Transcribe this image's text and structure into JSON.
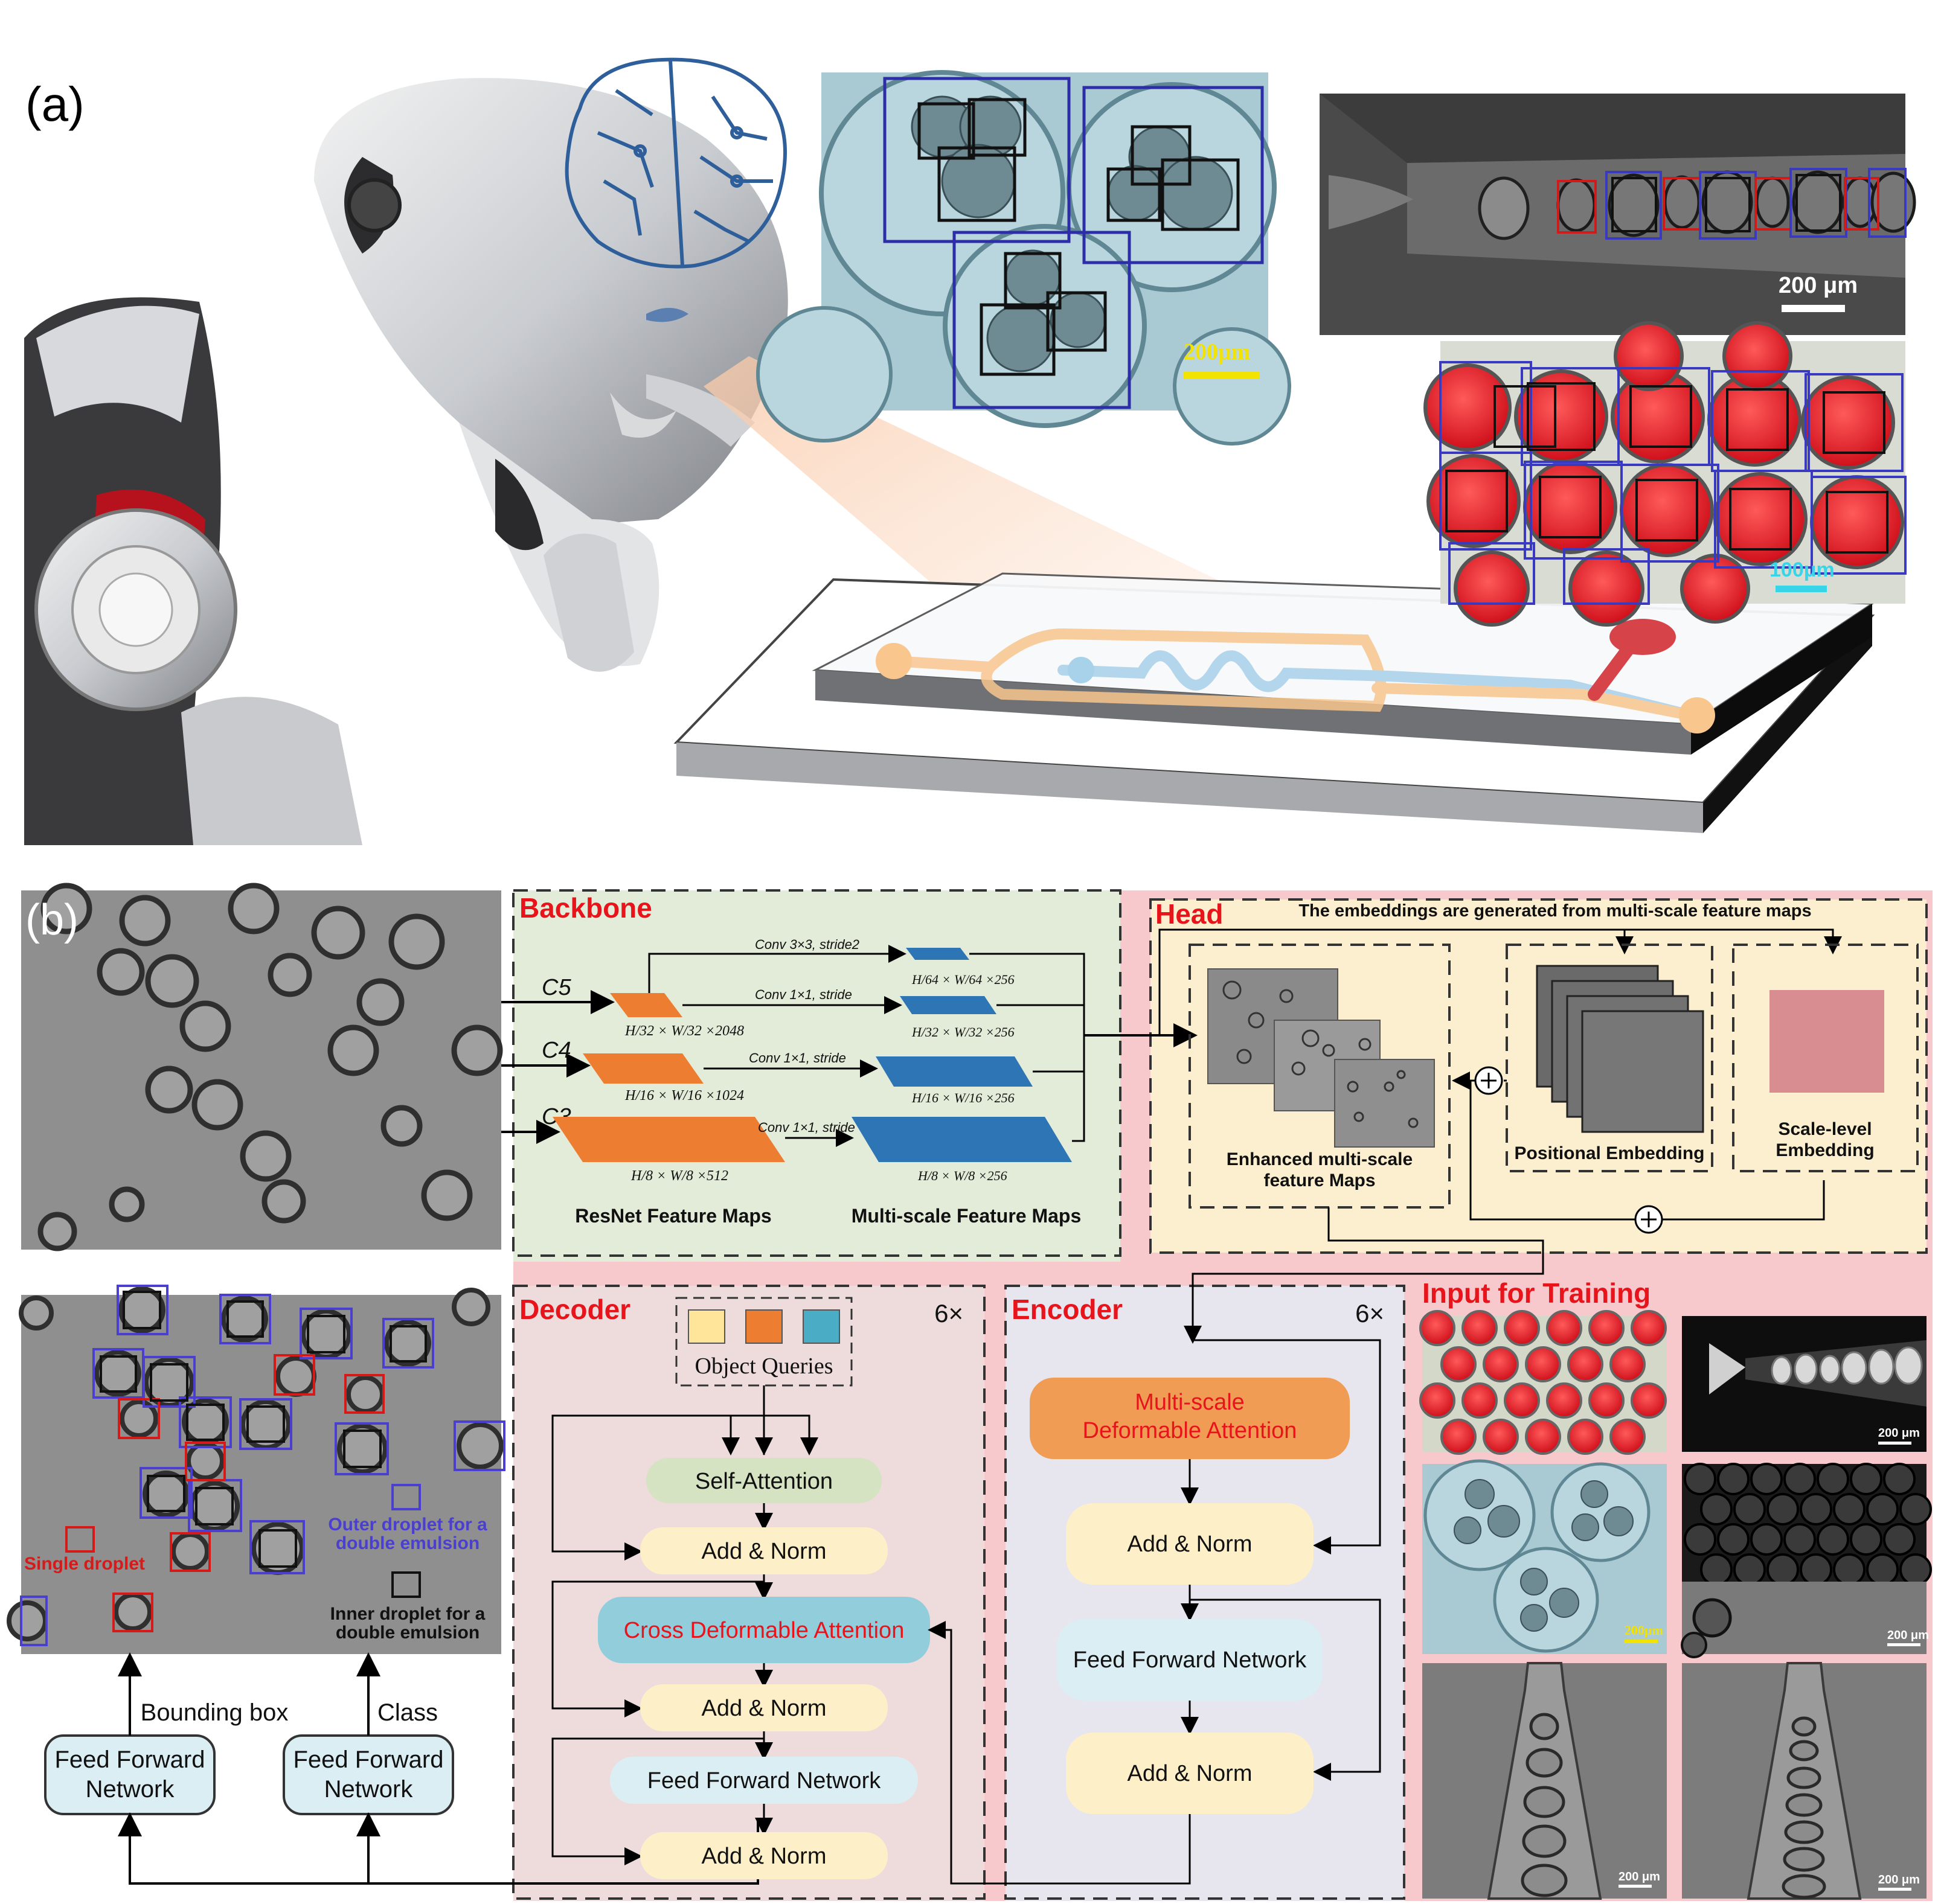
{
  "panel_a": {
    "label": "(a)",
    "scale_bar_1": "200μm",
    "scale_bar_2": "200 μm",
    "scale_bar_3": "100μm"
  },
  "panel_b": {
    "label": "(b)",
    "backbone": {
      "title": "Backbone",
      "c5": "C5",
      "c4": "C4",
      "c3": "C3",
      "conv_top": "Conv 3×3, stride2",
      "conv_c5": "Conv 1×1, stride",
      "conv_c4": "Conv 1×1, stride",
      "conv_c3": "Conv 1×1, stride",
      "dim_c5": "H/32 × W/32 ×2048",
      "dim_c4": "H/16 × W/16 ×1024",
      "dim_c3": "H/8 × W/8 ×512",
      "dim_m1": "H/64 × W/64 ×256",
      "dim_m2": "H/32 × W/32 ×256",
      "dim_m3": "H/16 × W/16 ×256",
      "dim_m4": "H/8 × W/8 ×256",
      "resnet_label": "ResNet Feature Maps",
      "multiscale_label": "Multi-scale Feature Maps"
    },
    "head": {
      "title": "Head",
      "note": "The embeddings are generated from multi-scale feature maps",
      "enhanced_label_1": "Enhanced multi-scale",
      "enhanced_label_2": "feature Maps",
      "positional_label": "Positional Embedding",
      "scale_label_1": "Scale-level",
      "scale_label_2": "Embedding"
    },
    "decoder": {
      "title": "Decoder",
      "repeat": "6×",
      "object_queries": "Object Queries",
      "self_attention": "Self-Attention",
      "add_norm_1": "Add & Norm",
      "cross_attention": "Cross Deformable Attention",
      "add_norm_2": "Add & Norm",
      "ffn": "Feed Forward Network",
      "add_norm_3": "Add & Norm"
    },
    "encoder": {
      "title": "Encoder",
      "repeat": "6×",
      "msda_1": "Multi-scale",
      "msda_2": "Deformable Attention",
      "add_norm_1": "Add & Norm",
      "ffn": "Feed Forward Network",
      "add_norm_2": "Add & Norm"
    },
    "training": {
      "title": "Input for Training",
      "scale_a": "200 μm",
      "scale_b": "200μm",
      "scale_c": "200 μm",
      "scale_d": "200 μm",
      "scale_e": "200 μm"
    },
    "detection": {
      "single_label": "Single droplet",
      "outer_label_1": "Outer droplet for a",
      "outer_label_2": "double emulsion",
      "inner_label_1": "Inner droplet for a",
      "inner_label_2": "double emulsion"
    },
    "output": {
      "bbox_label": "Bounding box",
      "class_label": "Class",
      "ffn1_line1": "Feed Forward",
      "ffn1_line2": "Network",
      "ffn2_line1": "Feed Forward",
      "ffn2_line2": "Network"
    }
  },
  "colors": {
    "red_label": "#e8141c",
    "orange": "#ed7d31",
    "blue": "#2e75b6",
    "backbone_bg": "#e3ecd8",
    "head_bg": "#fcefcf",
    "pink_bg": "#f8c9cc",
    "decoder_bg": "#eedcdc",
    "encoder_bg": "#e7e6ef",
    "add_norm": "#fdf0c8",
    "self_att": "#d6e3c2",
    "cross_att": "#92cddc",
    "ffn": "#daeef3",
    "msda": "#f09c54"
  }
}
